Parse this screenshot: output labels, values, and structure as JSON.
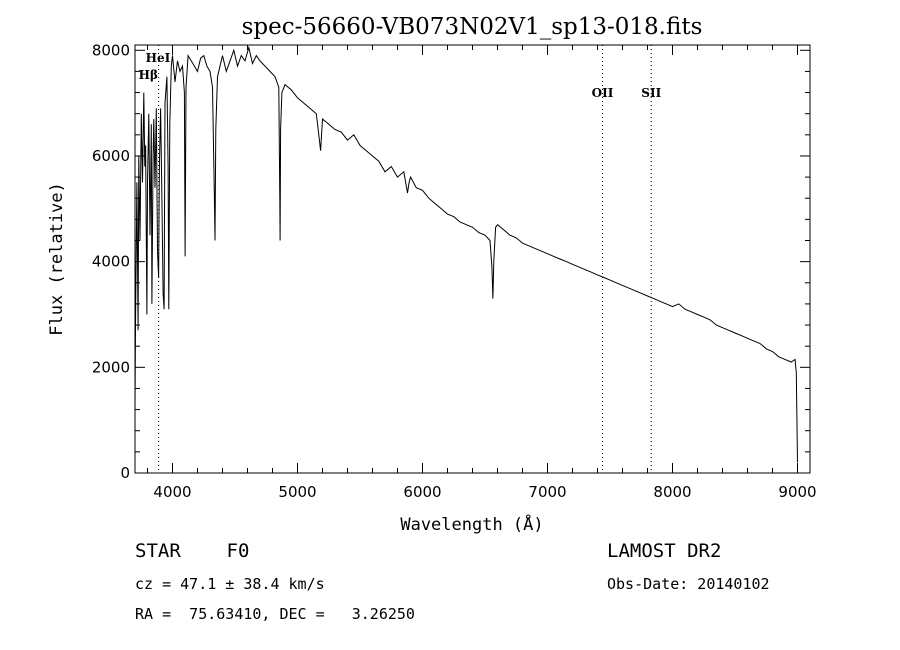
{
  "chart_data": {
    "type": "line",
    "title": "spec-56660-VB073N02V1_sp13-018.fits",
    "xlabel": "Wavelength (Å)",
    "ylabel": "Flux (relative)",
    "xlim": [
      3700,
      9100
    ],
    "ylim": [
      0,
      8100
    ],
    "xticks": [
      4000,
      5000,
      6000,
      7000,
      8000,
      9000
    ],
    "yticks": [
      0,
      2000,
      4000,
      6000,
      8000
    ],
    "grid": false,
    "series": [
      {
        "x": [
          3700,
          3705,
          3715,
          3725,
          3730,
          3740,
          3750,
          3760,
          3770,
          3778,
          3785,
          3795,
          3800,
          3810,
          3820,
          3830,
          3835,
          3845,
          3850,
          3860,
          3870,
          3880,
          3889,
          3895,
          3905,
          3915,
          3925,
          3933,
          3940,
          3955,
          3965,
          3970,
          3978,
          3990,
          4000,
          4020,
          4040,
          4060,
          4080,
          4095,
          4101,
          4108,
          4125,
          4150,
          4175,
          4200,
          4225,
          4250,
          4275,
          4300,
          4320,
          4335,
          4340,
          4346,
          4360,
          4380,
          4400,
          4430,
          4460,
          4490,
          4520,
          4550,
          4580,
          4610,
          4640,
          4670,
          4700,
          4740,
          4780,
          4820,
          4850,
          4858,
          4861,
          4865,
          4875,
          4900,
          4950,
          5000,
          5050,
          5100,
          5150,
          5170,
          5185,
          5200,
          5250,
          5300,
          5350,
          5400,
          5450,
          5500,
          5550,
          5600,
          5650,
          5700,
          5750,
          5800,
          5850,
          5880,
          5893,
          5905,
          5950,
          6000,
          6050,
          6100,
          6150,
          6200,
          6250,
          6300,
          6350,
          6400,
          6450,
          6500,
          6540,
          6555,
          6563,
          6570,
          6585,
          6600,
          6650,
          6700,
          6750,
          6800,
          6850,
          6900,
          6950,
          7000,
          7050,
          7100,
          7150,
          7200,
          7250,
          7300,
          7350,
          7400,
          7450,
          7500,
          7550,
          7600,
          7650,
          7700,
          7750,
          7800,
          7850,
          7900,
          7950,
          8000,
          8050,
          8100,
          8150,
          8200,
          8250,
          8300,
          8350,
          8400,
          8450,
          8500,
          8550,
          8600,
          8650,
          8700,
          8750,
          8800,
          8850,
          8900,
          8950,
          8980,
          8990,
          9000
        ],
        "values": [
          1200,
          3000,
          5500,
          2700,
          6000,
          4400,
          6800,
          5500,
          7200,
          5800,
          6200,
          3000,
          5500,
          6800,
          4500,
          6600,
          3200,
          6000,
          6700,
          5400,
          6900,
          4200,
          3700,
          5800,
          6900,
          5200,
          3400,
          3100,
          7000,
          7500,
          5800,
          3100,
          6600,
          7700,
          7900,
          7400,
          7800,
          7600,
          7700,
          7200,
          4100,
          7300,
          7900,
          7800,
          7700,
          7600,
          7850,
          7900,
          7700,
          7600,
          7300,
          5200,
          4400,
          6500,
          7500,
          7700,
          7900,
          7600,
          7800,
          8000,
          7700,
          7900,
          7800,
          8050,
          7750,
          7900,
          7800,
          7700,
          7600,
          7500,
          7300,
          5200,
          4400,
          6500,
          7200,
          7350,
          7250,
          7100,
          7000,
          6900,
          6800,
          6400,
          6100,
          6700,
          6600,
          6500,
          6450,
          6300,
          6400,
          6200,
          6100,
          6000,
          5900,
          5700,
          5800,
          5600,
          5700,
          5300,
          5500,
          5600,
          5400,
          5350,
          5200,
          5100,
          5000,
          4900,
          4850,
          4750,
          4700,
          4650,
          4550,
          4500,
          4400,
          3900,
          3300,
          4000,
          4650,
          4700,
          4600,
          4500,
          4450,
          4350,
          4300,
          4250,
          4200,
          4150,
          4100,
          4050,
          4000,
          3950,
          3900,
          3850,
          3800,
          3750,
          3700,
          3650,
          3600,
          3550,
          3500,
          3450,
          3400,
          3350,
          3300,
          3250,
          3200,
          3150,
          3200,
          3100,
          3050,
          3000,
          2950,
          2900,
          2800,
          2750,
          2700,
          2650,
          2600,
          2550,
          2500,
          2450,
          2350,
          2300,
          2200,
          2150,
          2100,
          2150,
          1900,
          200
        ]
      }
    ],
    "annotations": [
      {
        "label": "Hβ",
        "x": 3889
      },
      {
        "label": "HeI",
        "x": 3889
      },
      {
        "label": "OII",
        "x": 7440
      },
      {
        "label": "SII",
        "x": 7830
      }
    ]
  },
  "info": {
    "class": "STAR    F0",
    "survey": "LAMOST DR2",
    "cz": "cz = 47.1 ± 38.4 km/s",
    "obs_date": "Obs-Date: 20140102",
    "coords": "RA =  75.63410, DEC =   3.26250"
  }
}
